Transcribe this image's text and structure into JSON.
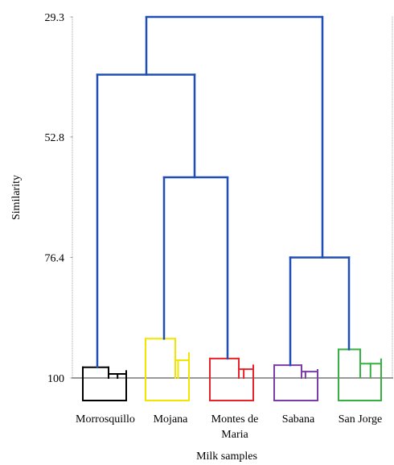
{
  "chart_data": {
    "type": "dendrogram",
    "xlabel": "Milk samples",
    "ylabel": "Similarity",
    "y_ticks": [
      "29.3",
      "52.8",
      "76.4",
      "100"
    ],
    "ylim": [
      29.3,
      100
    ],
    "grid": false,
    "colors": {
      "Morrosquillo": "#000000",
      "Mojana": "#f2e600",
      "Montes de Maria": "#e8232a",
      "Sabana": "#7a3ca8",
      "San Jorge": "#36b040",
      "links": "#1f4fb4",
      "baseline": "#9a9a9a",
      "frame": "#b8b8b8"
    },
    "groups": [
      {
        "name": "Morrosquillo",
        "label_lines": [
          "Morrosquillo"
        ],
        "merge_similarity": 97.9
      },
      {
        "name": "Mojana",
        "label_lines": [
          "Mojana"
        ],
        "merge_similarity": 92.3
      },
      {
        "name": "Montes de Maria",
        "label_lines": [
          "Montes de",
          "Maria"
        ],
        "merge_similarity": 96.2
      },
      {
        "name": "Sabana",
        "label_lines": [
          "Sabana"
        ],
        "merge_similarity": 97.5
      },
      {
        "name": "San Jorge",
        "label_lines": [
          "San Jorge"
        ],
        "merge_similarity": 94.4
      }
    ],
    "links": [
      {
        "left": "Mojana",
        "right": "Montes de Maria",
        "similarity": 60.7
      },
      {
        "left": "Morrosquillo",
        "right": "Mojana + Montes de Maria",
        "similarity": 40.6
      },
      {
        "left": "Sabana",
        "right": "San Jorge",
        "similarity": 76.4
      },
      {
        "left": "Morrosquillo + Mojana + Montes de Maria",
        "right": "Sabana + San Jorge",
        "similarity": 29.3
      }
    ]
  }
}
